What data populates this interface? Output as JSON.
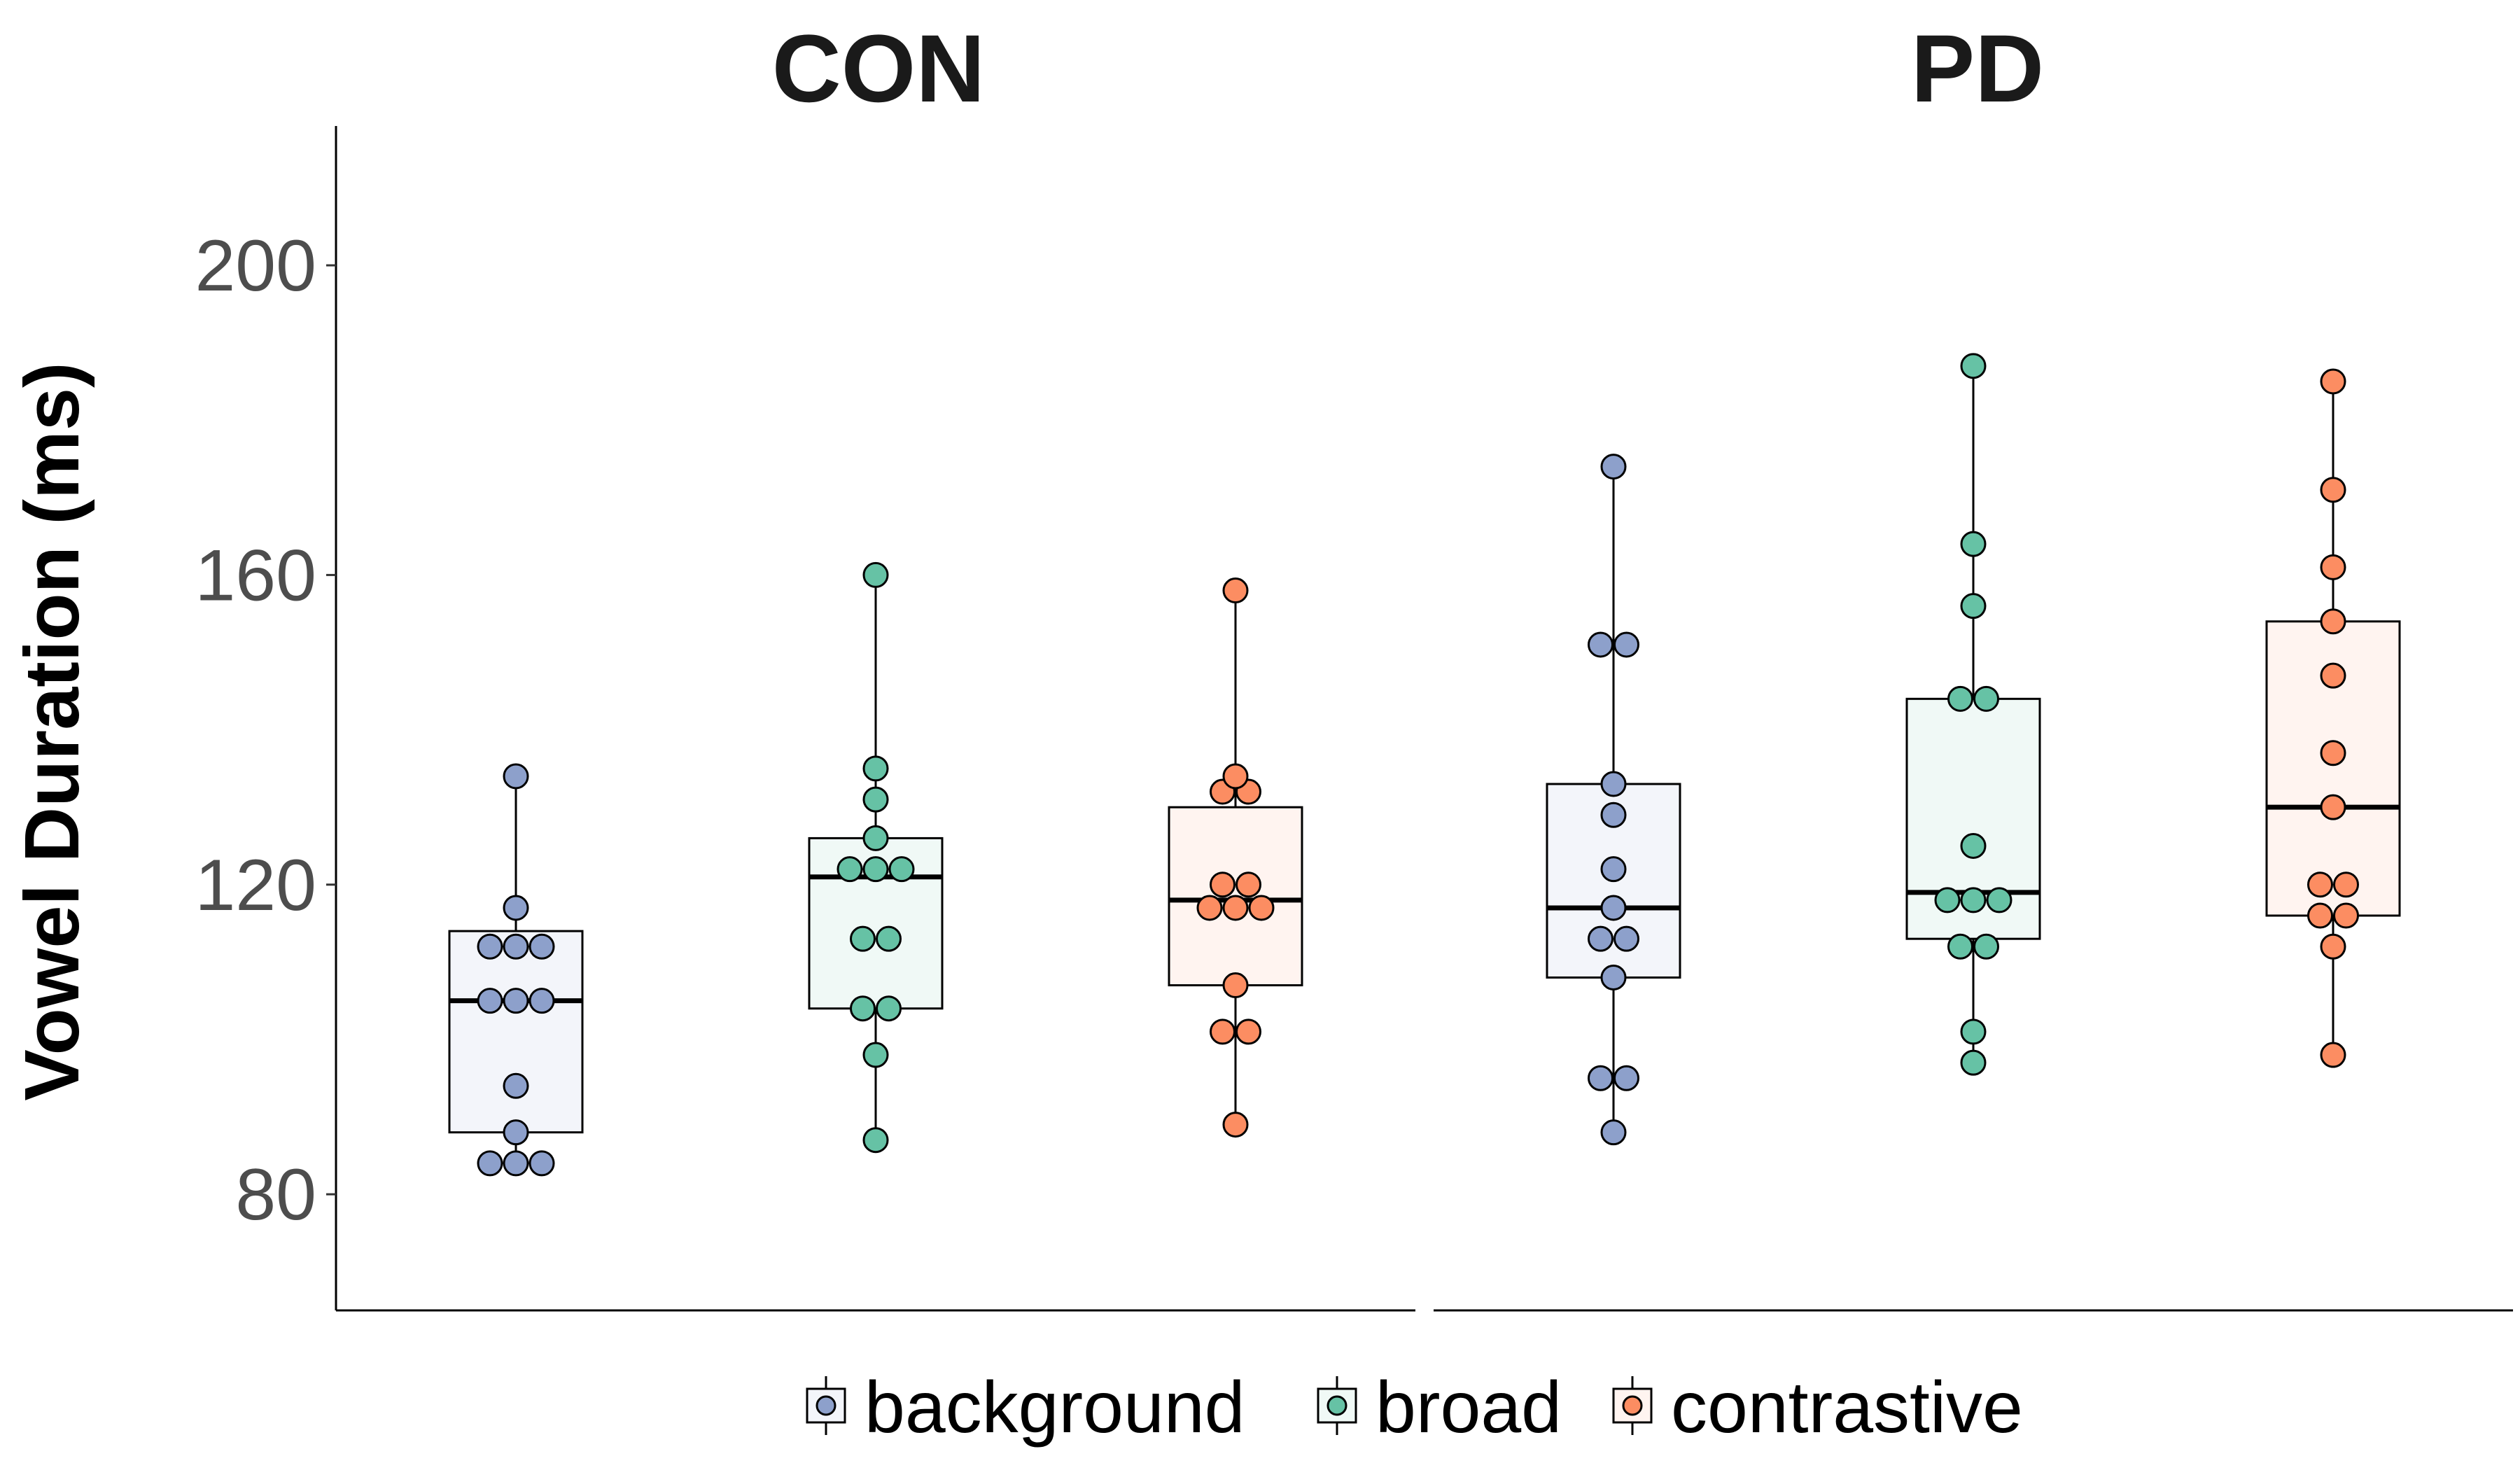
{
  "chart_data": {
    "type": "boxplot",
    "ylabel": "Vowel Duration (ms)",
    "ylim": [
      65,
      218
    ],
    "yticks": [
      80,
      120,
      160,
      200
    ],
    "grid": false,
    "legend_position": "bottom",
    "groups": [
      "background",
      "broad",
      "contrastive"
    ],
    "colors": {
      "background": "#8da0cb",
      "broad": "#66c2a5",
      "contrastive": "#fc8d62"
    },
    "fills": {
      "background": "#f3f5fa",
      "broad": "#f0f9f6",
      "contrastive": "#fff4f0"
    },
    "facets": [
      {
        "title": "CON",
        "boxes": [
          {
            "group": "background",
            "min": 84,
            "q1": 88,
            "median": 105,
            "q3": 114,
            "max": 134,
            "points": [
              84,
              84,
              84,
              88,
              94,
              105,
              105,
              105,
              112,
              112,
              112,
              117,
              134
            ]
          },
          {
            "group": "broad",
            "min": 87,
            "q1": 104,
            "median": 121,
            "q3": 126,
            "max": 160,
            "points": [
              87,
              98,
              104,
              104,
              113,
              113,
              122,
              122,
              122,
              126,
              131,
              135,
              160
            ]
          },
          {
            "group": "contrastive",
            "min": 89,
            "q1": 107,
            "median": 118,
            "q3": 130,
            "max": 158,
            "points": [
              89,
              101,
              101,
              107,
              117,
              117,
              117,
              120,
              120,
              132,
              132,
              134,
              158
            ]
          }
        ]
      },
      {
        "title": "PD",
        "boxes": [
          {
            "group": "background",
            "min": 88,
            "q1": 108,
            "median": 117,
            "q3": 133,
            "max": 174,
            "points": [
              88,
              95,
              95,
              108,
              113,
              113,
              117,
              122,
              129,
              133,
              151,
              151,
              174
            ]
          },
          {
            "group": "broad",
            "min": 97,
            "q1": 113,
            "median": 119,
            "q3": 144,
            "max": 187,
            "points": [
              97,
              101,
              112,
              112,
              118,
              118,
              118,
              125,
              144,
              144,
              156,
              164,
              187
            ]
          },
          {
            "group": "contrastive",
            "min": 98,
            "q1": 116,
            "median": 130,
            "q3": 154,
            "max": 185,
            "points": [
              98,
              112,
              116,
              116,
              120,
              120,
              130,
              137,
              147,
              154,
              161,
              171,
              185
            ]
          }
        ]
      }
    ]
  }
}
